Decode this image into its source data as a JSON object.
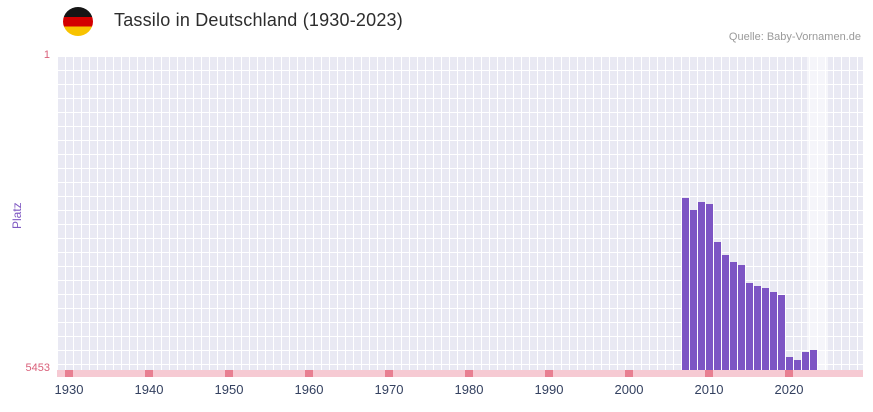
{
  "header": {
    "flag_icon": "german-flag-icon",
    "title": "Tassilo in Deutschland (1930-2023)",
    "source": "Quelle: Baby-Vornamen.de"
  },
  "chart_data": {
    "type": "bar",
    "title": "Tassilo in Deutschland (1930-2023)",
    "xlabel": "",
    "ylabel": "Platz",
    "y_axis": {
      "tick_labels": [
        "1",
        "5453"
      ],
      "min": 1,
      "max": 5453,
      "inverted": true,
      "note": "rank 1 at top, rank 5453 at bottom; taller bar = better rank"
    },
    "x_ticks": [
      "1930",
      "1940",
      "1950",
      "1960",
      "1970",
      "1980",
      "1990",
      "2000",
      "2010",
      "2020"
    ],
    "x_range_years": [
      1930,
      2023
    ],
    "grid": true,
    "legend_position": "none",
    "bar_color": "#7d55c4",
    "plot_background": "#e9e9f3",
    "baseline_strip_color": "#f6cad3",
    "baseline_tick_color": "#e87f91",
    "y_tick_color": "#d95f79",
    "highlight_recent_years": {
      "from": 2022.2,
      "to": 2024.9
    },
    "series": [
      {
        "name": "Platz",
        "points": [
          {
            "year": 2007,
            "rank": 2470
          },
          {
            "year": 2008,
            "rank": 2670
          },
          {
            "year": 2009,
            "rank": 2540
          },
          {
            "year": 2010,
            "rank": 2570
          },
          {
            "year": 2011,
            "rank": 3230
          },
          {
            "year": 2012,
            "rank": 3460
          },
          {
            "year": 2013,
            "rank": 3580
          },
          {
            "year": 2014,
            "rank": 3630
          },
          {
            "year": 2015,
            "rank": 3940
          },
          {
            "year": 2016,
            "rank": 3990
          },
          {
            "year": 2017,
            "rank": 4030
          },
          {
            "year": 2018,
            "rank": 4100
          },
          {
            "year": 2019,
            "rank": 4150
          },
          {
            "year": 2020,
            "rank": 5230
          },
          {
            "year": 2021,
            "rank": 5280
          },
          {
            "year": 2022,
            "rank": 5140
          },
          {
            "year": 2023,
            "rank": 5110
          }
        ]
      }
    ]
  }
}
